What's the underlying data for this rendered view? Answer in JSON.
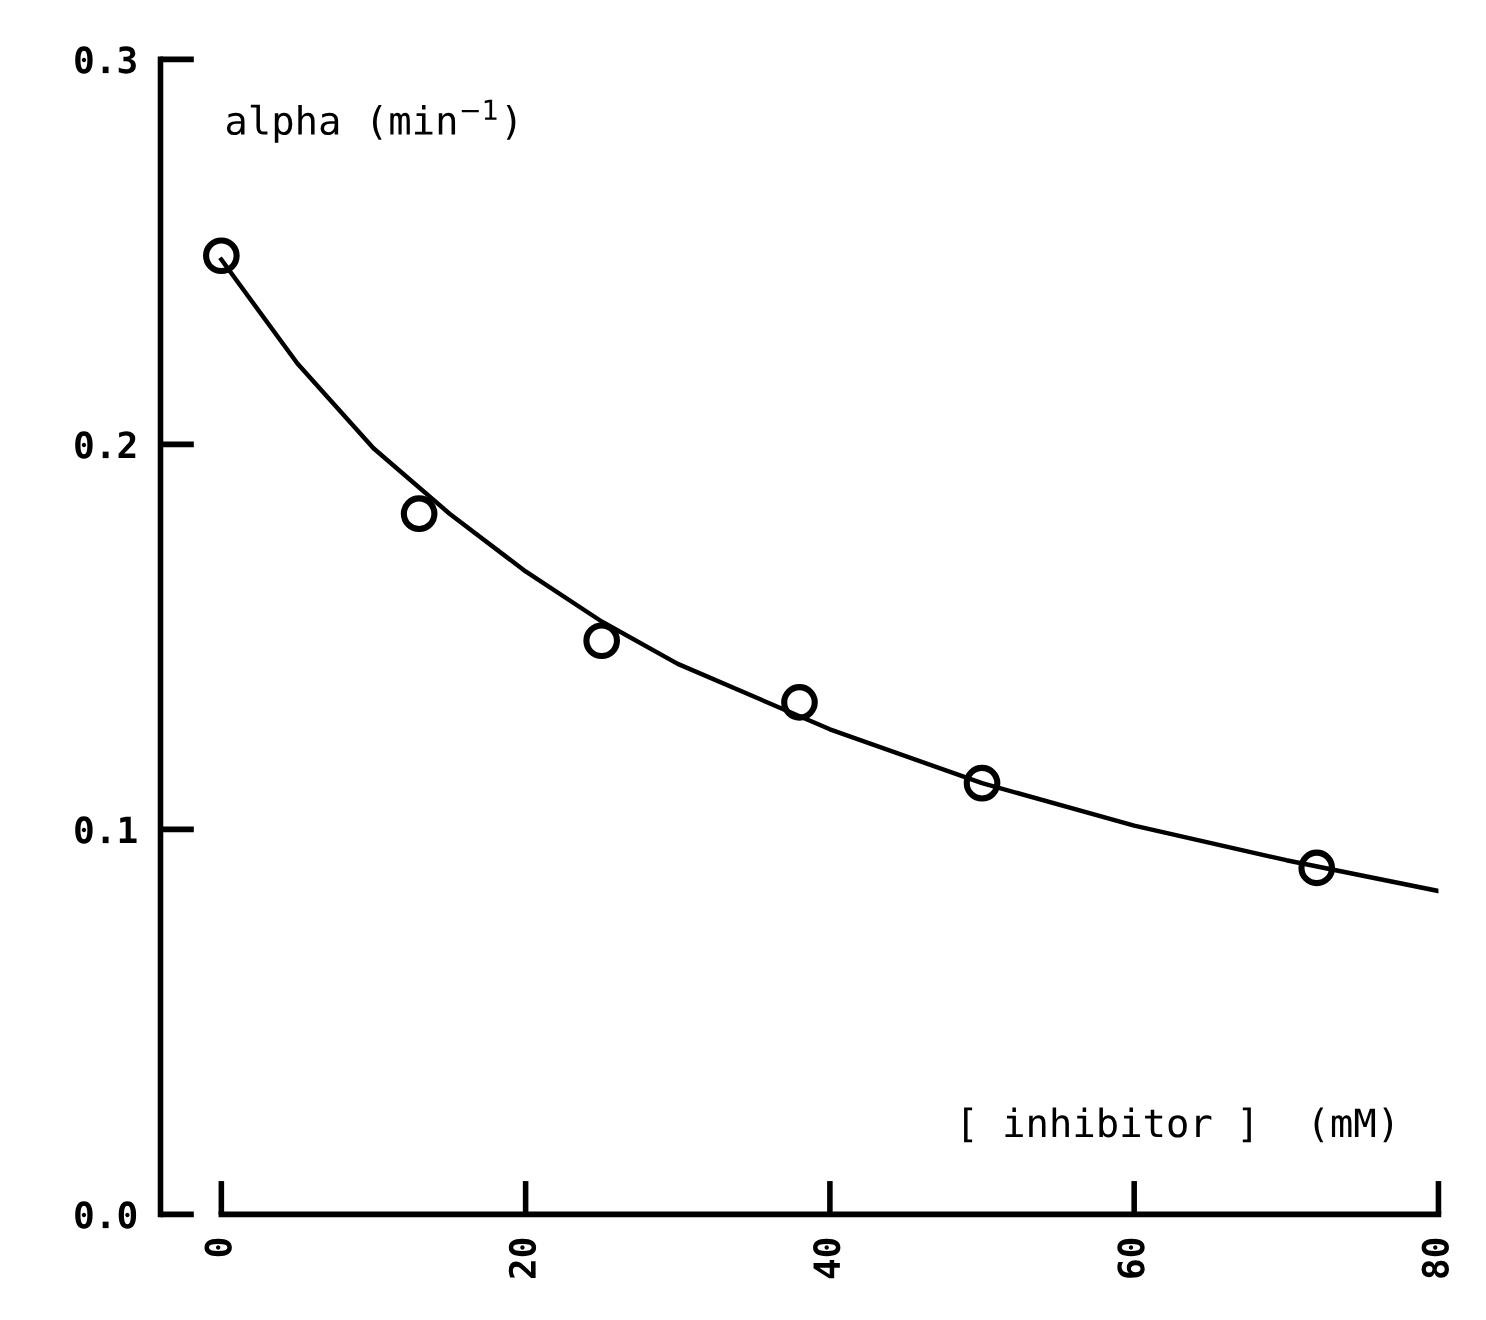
{
  "chart_data": {
    "type": "scatter",
    "xlabel": "[ inhibitor ]  (mM)",
    "ylabel": "alpha (min$^{−1}$)",
    "xlim": [
      -4,
      80
    ],
    "ylim": [
      0,
      0.3
    ],
    "xticks": [
      0,
      20,
      40,
      60,
      80
    ],
    "yticks": [
      {
        "value": 0,
        "label": "0.0"
      },
      {
        "value": 0.1,
        "label": "0.1"
      },
      {
        "value": 0.2,
        "label": "0.2"
      },
      {
        "value": 0.3,
        "label": "0.3"
      }
    ],
    "grid": false,
    "legend": false,
    "series": [
      {
        "color": "#000000",
        "marker": "circle",
        "x": [
          0,
          13,
          25,
          38,
          50,
          72
        ],
        "values": [
          0.249,
          0.182,
          0.149,
          0.133,
          0.112,
          0.09
        ]
      },
      {
        "type": "line",
        "color": "#000000",
        "x": [
          0,
          5,
          10,
          15,
          20,
          25,
          30,
          40,
          50,
          60,
          70,
          80
        ],
        "values": [
          0.248,
          0.221,
          0.199,
          0.182,
          0.167,
          0.154,
          0.143,
          0.126,
          0.112,
          0.101,
          0.092,
          0.084
        ]
      }
    ]
  }
}
